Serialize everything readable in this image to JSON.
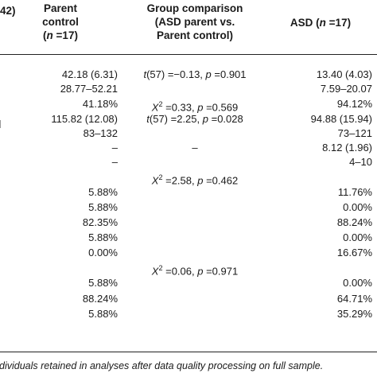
{
  "headers": {
    "col0_fragment": "42)",
    "parent_control_line1": "Parent",
    "parent_control_line2": "control",
    "parent_control_n_open": "(",
    "parent_control_n_var": "n",
    "parent_control_n_rest": " =17)",
    "comparison_line1": "Group comparison",
    "comparison_line2": "(ASD parent vs.",
    "comparison_line3": "Parent control)",
    "asd_label": "ASD (",
    "asd_n_var": "n",
    "asd_n_rest": " =17)"
  },
  "rows": [
    {
      "pc": "42.18 (6.31)",
      "cmp_stat": "t",
      "cmp_rest": "(57) =−0.13, ",
      "cmp_p": "p",
      "cmp_pval": " =0.901",
      "asd": "13.40 (4.03)"
    },
    {
      "pc": "28.77–52.21",
      "asd": "7.59–20.07"
    },
    {
      "pc": "41.18%",
      "cmp_stat": "X",
      "cmp_sup": "2",
      "cmp_rest": " =0.33, ",
      "cmp_p": "p",
      "cmp_pval": " =0.569",
      "asd": "94.12%"
    },
    {
      "pc": "115.82 (12.08)",
      "cmp_stat": "t",
      "cmp_rest": "(57) =2.25, ",
      "cmp_p": "p",
      "cmp_pval": " =0.028",
      "asd": "94.88 (15.94)"
    },
    {
      "pc": "83–132",
      "asd": "73–121"
    },
    {
      "pc": "–",
      "cmp_plain": "–",
      "asd": "8.12 (1.96)"
    },
    {
      "pc": "–",
      "asd": "4–10"
    },
    {
      "cmp_stat": "X",
      "cmp_sup": "2",
      "cmp_rest": " =2.58, ",
      "cmp_p": "p",
      "cmp_pval": " =0.462"
    },
    {
      "pc": "5.88%",
      "asd": "11.76%"
    },
    {
      "pc": "5.88%",
      "asd": "0.00%"
    },
    {
      "pc": "82.35%",
      "asd": "88.24%"
    },
    {
      "pc": "5.88%",
      "asd": "0.00%"
    },
    {
      "pc": "0.00%",
      "asd": "16.67%"
    },
    {
      "cmp_stat": "X",
      "cmp_sup": "2",
      "cmp_rest": " =0.06, ",
      "cmp_p": "p",
      "cmp_pval": " =0.971"
    },
    {
      "pc": "5.88%",
      "asd": "0.00%"
    },
    {
      "pc": "88.24%",
      "asd": "64.71%"
    },
    {
      "pc": "5.88%",
      "asd": "35.29%"
    }
  ],
  "footnote": "dividuals retained in analyses after data quality processing on full sample."
}
